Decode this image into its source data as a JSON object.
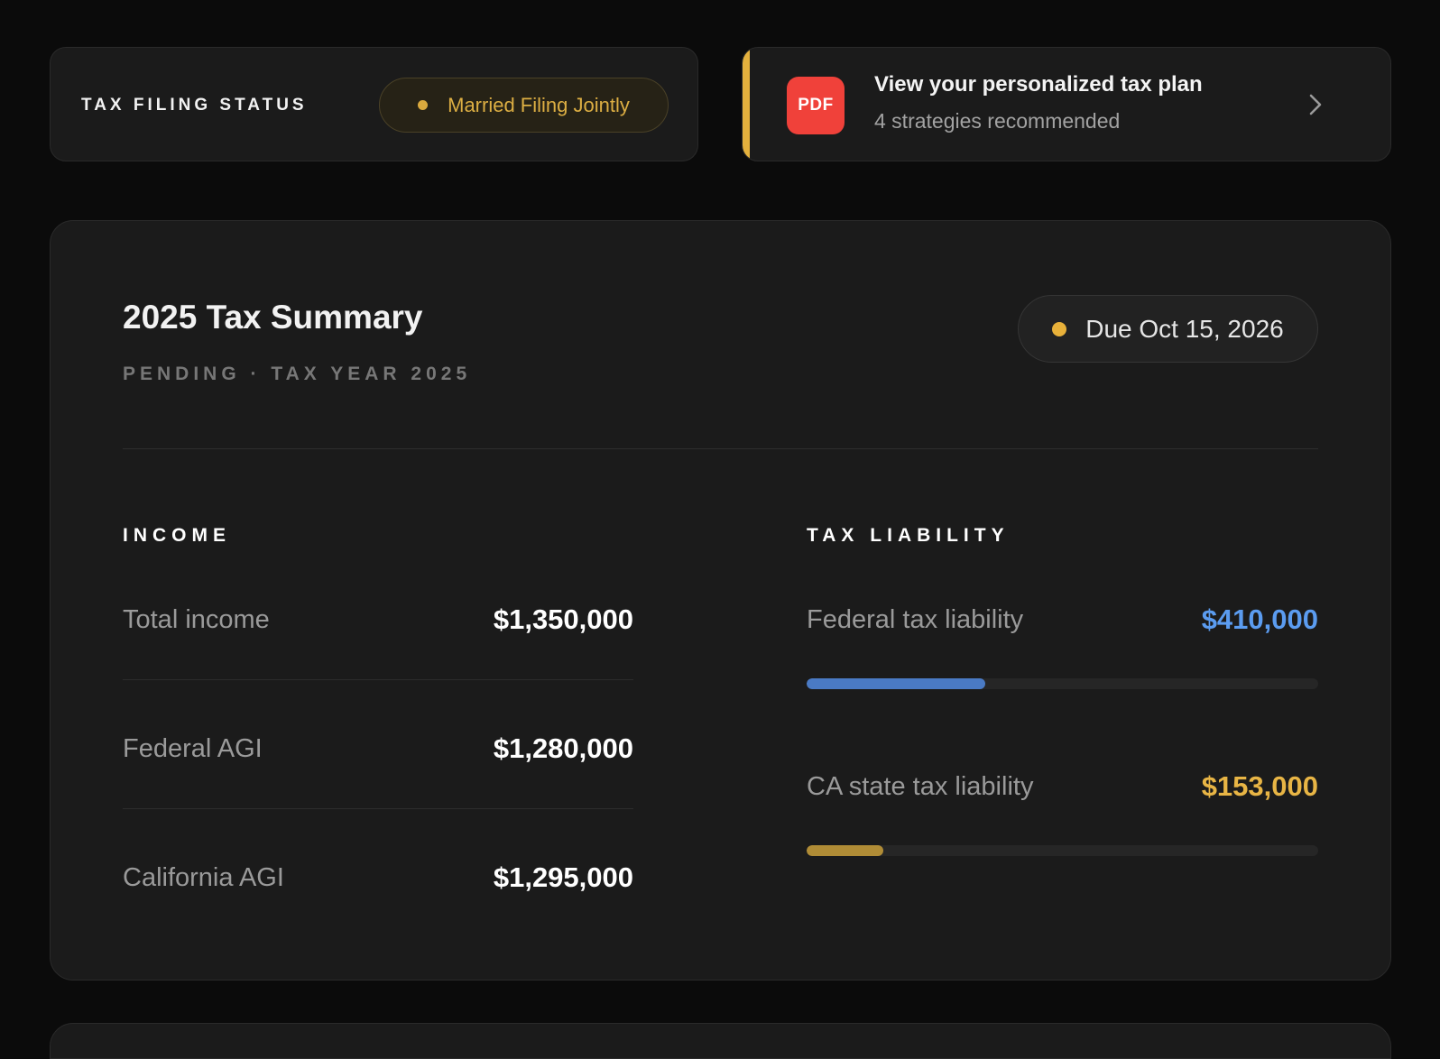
{
  "filing_status": {
    "label": "TAX FILING STATUS",
    "value": "Married Filing Jointly",
    "accent_color": "#dcae43"
  },
  "plan_card": {
    "icon": "pdf-icon",
    "icon_text": "PDF",
    "title": "View your personalized tax plan",
    "subtitle": "4 strategies recommended",
    "accent_color": "#e4b13d"
  },
  "summary": {
    "title": "2025 Tax Summary",
    "subtitle": "PENDING · TAX YEAR 2025",
    "due_label": "Due Oct 15, 2026",
    "income": {
      "heading": "INCOME",
      "rows": [
        {
          "label": "Total income",
          "value": "$1,350,000"
        },
        {
          "label": "Federal AGI",
          "value": "$1,280,000"
        },
        {
          "label": "California AGI",
          "value": "$1,295,000"
        }
      ]
    },
    "tax_liability": {
      "heading": "TAX LIABILITY",
      "rows": [
        {
          "label": "Federal tax liability",
          "value": "$410,000",
          "color": "#5b9cf0",
          "bar_color": "#4a7ac4",
          "progress": 0.35
        },
        {
          "label": "CA state tax liability",
          "value": "$153,000",
          "color": "#e8b545",
          "bar_color": "#b08c36",
          "progress": 0.15
        }
      ]
    }
  }
}
